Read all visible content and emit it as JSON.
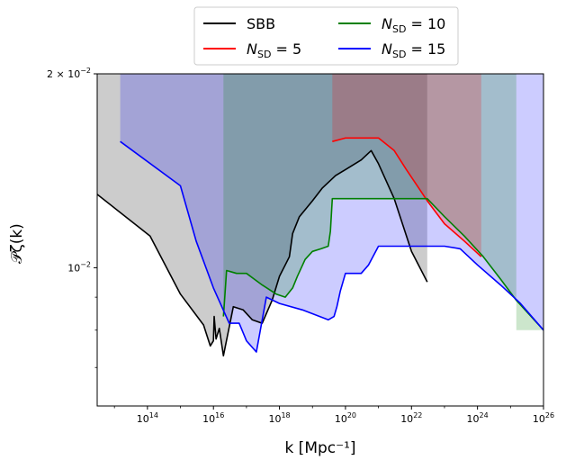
{
  "chart_data": {
    "type": "line",
    "title": "",
    "xlabel": "k [Mpc⁻¹]",
    "ylabel": "𝒫ζ(k)",
    "xscale": "log",
    "yscale": "log",
    "xlim": [
      3000000000000.0,
      1e+26
    ],
    "ylim": [
      0.0061,
      0.02
    ],
    "x_ticks": [
      {
        "value": 100000000000000.0,
        "label": "10",
        "exp": "14"
      },
      {
        "value": 1e+16,
        "label": "10",
        "exp": "16"
      },
      {
        "value": 1e+18,
        "label": "10",
        "exp": "18"
      },
      {
        "value": 1e+20,
        "label": "10",
        "exp": "20"
      },
      {
        "value": 1e+22,
        "label": "10",
        "exp": "22"
      },
      {
        "value": 1e+24,
        "label": "10",
        "exp": "24"
      },
      {
        "value": 1e+26,
        "label": "10",
        "exp": "26"
      }
    ],
    "y_ticks": [
      {
        "value": 0.01,
        "label": "10",
        "exp": "−2",
        "prefix": ""
      },
      {
        "value": 0.02,
        "label": "10",
        "exp": "−2",
        "prefix": "2 × "
      }
    ],
    "grid": false,
    "legend": {
      "placement": "top-center",
      "columns": 2,
      "entries": [
        {
          "label": "SBB",
          "label_tex": "SBB",
          "color": "#000000"
        },
        {
          "label": "N_SD = 5",
          "base": "N",
          "sub": "SD",
          "rest": " = 5",
          "color": "#ff0000"
        },
        {
          "label": "N_SD = 10",
          "base": "N",
          "sub": "SD",
          "rest": " = 10",
          "color": "#008000"
        },
        {
          "label": "N_SD = 15",
          "base": "N",
          "sub": "SD",
          "rest": " = 15",
          "color": "#0000ff"
        }
      ]
    },
    "shaded_regions": [
      {
        "name": "SBB-excluded",
        "color": "#000000",
        "opacity": 0.2,
        "x_range": [
          3000000000000.0,
          3e+22
        ],
        "boundary_series": "SBB"
      },
      {
        "name": "N_SD=15-excluded",
        "color": "#0000ff",
        "opacity": 0.2,
        "x_range": [
          15000000000000.0,
          1e+26
        ],
        "boundary_series": "N_SD = 15"
      },
      {
        "name": "N_SD=10-excluded",
        "color": "#008000",
        "opacity": 0.2,
        "x_range": [
          2e+16,
          1.5e+25
        ],
        "boundary_series": "N_SD = 10"
      },
      {
        "name": "N_SD=5-excluded",
        "color": "#ff0000",
        "opacity": 0.2,
        "x_range": [
          4e+19,
          1.3e+24
        ],
        "boundary_series": "N_SD = 5"
      }
    ],
    "series": [
      {
        "name": "SBB",
        "color": "#000000",
        "x": [
          3000000000000.0,
          120000000000000.0,
          1000000000000000.0,
          5000000000000000.0,
          8000000000000000.0,
          1e+16,
          1.05e+16,
          1.2e+16,
          1.5e+16,
          2e+16,
          4e+16,
          8e+16,
          1.5e+17,
          3e+17,
          6e+17,
          1e+18,
          1.5e+18,
          2e+18,
          2.5e+18,
          4e+18,
          1e+19,
          2e+19,
          5e+19,
          1e+20,
          3e+20,
          6e+20,
          1e+21,
          3e+21,
          1e+22,
          3e+22
        ],
        "y": [
          0.013,
          0.0112,
          0.0091,
          0.00815,
          0.00756,
          0.0077,
          0.0084,
          0.00775,
          0.00805,
          0.0073,
          0.0087,
          0.0086,
          0.0083,
          0.0082,
          0.0089,
          0.0097,
          0.0101,
          0.0104,
          0.0113,
          0.012,
          0.0127,
          0.0133,
          0.0139,
          0.0142,
          0.0147,
          0.0152,
          0.0145,
          0.0128,
          0.0106,
          0.0095
        ]
      },
      {
        "name": "N_SD = 5",
        "color": "#ff0000",
        "x": [
          4e+19,
          1e+20,
          5e+20,
          1e+21,
          3e+21,
          7e+21,
          1.5e+22,
          3e+22,
          1e+23,
          4e+23,
          1.3e+24
        ],
        "y": [
          0.0157,
          0.0159,
          0.0159,
          0.0159,
          0.0152,
          0.0142,
          0.0134,
          0.0127,
          0.0117,
          0.011,
          0.0104
        ]
      },
      {
        "name": "N_SD = 10",
        "color": "#008000",
        "x": [
          2e+16,
          2.2e+16,
          2.5e+16,
          5e+16,
          1e+17,
          3e+17,
          8e+17,
          1.5e+18,
          2.5e+18,
          3.5e+18,
          6e+18,
          1e+19,
          1.8e+19,
          3e+19,
          3.5e+19,
          4e+19,
          1e+21,
          1e+22,
          3e+22,
          1e+23,
          4e+23,
          1.5e+24,
          5e+24,
          1.5e+25,
          1e+26
        ],
        "y": [
          0.0084,
          0.009,
          0.0099,
          0.0098,
          0.0098,
          0.0094,
          0.0091,
          0.009,
          0.0093,
          0.0097,
          0.0103,
          0.0106,
          0.0107,
          0.0108,
          0.0114,
          0.0128,
          0.0128,
          0.0128,
          0.0128,
          0.012,
          0.0112,
          0.0104,
          0.0096,
          0.0089,
          0.008
        ]
      },
      {
        "name": "N_SD = 15",
        "color": "#0000ff",
        "x": [
          15000000000000.0,
          1000000000000000.0,
          3000000000000000.0,
          1e+16,
          3e+16,
          6e+16,
          1e+17,
          2e+17,
          4e+17,
          1e+18,
          5e+18,
          3e+19,
          4.5e+19,
          5.5e+19,
          7e+19,
          1e+20,
          3e+20,
          5e+20,
          1e+21,
          1e+22,
          1e+23,
          3e+23,
          1e+24,
          5e+24,
          2e+25,
          1e+26
        ],
        "y": [
          0.0157,
          0.0134,
          0.011,
          0.0093,
          0.0082,
          0.0082,
          0.0077,
          0.0074,
          0.009,
          0.0088,
          0.0086,
          0.0083,
          0.0084,
          0.0087,
          0.0092,
          0.0098,
          0.0098,
          0.0101,
          0.0108,
          0.0108,
          0.0108,
          0.0107,
          0.0101,
          0.0094,
          0.0088,
          0.008
        ]
      }
    ]
  }
}
